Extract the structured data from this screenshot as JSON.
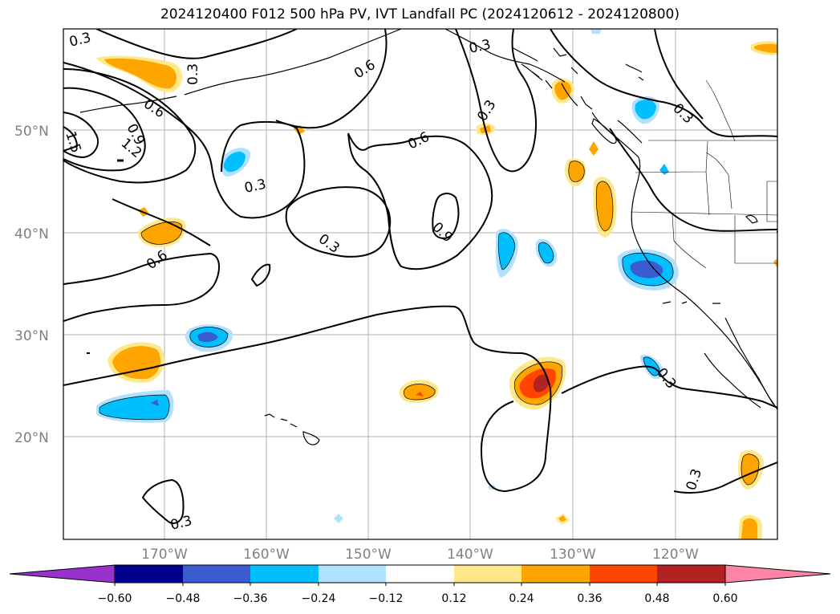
{
  "title": "2024120400 F012 500 hPa PV, IVT Landfall PC (2024120612 - 2024120800)",
  "axes": {
    "lon_labels": [
      "170°W",
      "160°W",
      "150°W",
      "140°W",
      "130°W",
      "120°W"
    ],
    "lat_labels": [
      "50°N",
      "40°N",
      "30°N",
      "20°N"
    ]
  },
  "contour_labels": [
    "0.3",
    "0.3",
    "0.3",
    "0.3",
    "0.3",
    "0.3",
    "0.3",
    "0.3",
    "0.3",
    "0.6",
    "0.6",
    "0.6",
    "0.6",
    "0.9",
    "0.9",
    "1.2",
    "1.5"
  ],
  "colorbar": {
    "ticks": [
      "−0.60",
      "−0.48",
      "−0.36",
      "−0.24",
      "−0.12",
      "0.12",
      "0.24",
      "0.36",
      "0.48",
      "0.60"
    ],
    "colors": [
      "#9932cc",
      "#00008b",
      "#3b5bd1",
      "#00bfff",
      "#b0e2ff",
      "#ffffff",
      "#ffe88a",
      "#ffa500",
      "#ff4500",
      "#b22222",
      "#ff85a8"
    ]
  },
  "fill_colors": {
    "orange": "#ffa500",
    "light_yellow": "#ffe88a",
    "red_orange": "#ff4500",
    "dark_red": "#b22222",
    "sky_blue": "#00bfff",
    "light_blue": "#b0e2ff",
    "royal_blue": "#3b5bd1"
  }
}
